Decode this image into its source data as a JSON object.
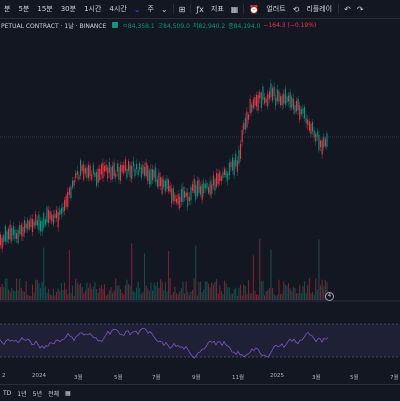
{
  "toolbar": {
    "intervals": [
      "분",
      "5분",
      "15분",
      "30분",
      "1시간",
      "4시간"
    ],
    "chart_type": "주",
    "indicators_label": "지표",
    "alert_label": "얼러트",
    "replay_label": "리플레이"
  },
  "legend": {
    "title": "PETUAL CONTRACT · 1날 · BINANCE",
    "open": "ㅇ84,358.1",
    "high": "고84,509.0",
    "low": "저82,940.2",
    "close": "종84,194.0",
    "change": "−164.3 (−0.19%)"
  },
  "colors": {
    "background": "#131722",
    "up": "#089981",
    "down": "#f23645",
    "rsi": "#7e57c2",
    "grid": "#2a2e39"
  },
  "time_axis": {
    "labels": [
      "2",
      "2024",
      "3월",
      "5월",
      "7월",
      "9월",
      "11월",
      "2025",
      "3월",
      "5월",
      "7월"
    ]
  },
  "bottom_bar": {
    "ranges": [
      "TD",
      "1년",
      "5년",
      "전체"
    ]
  },
  "badge": "4"
}
